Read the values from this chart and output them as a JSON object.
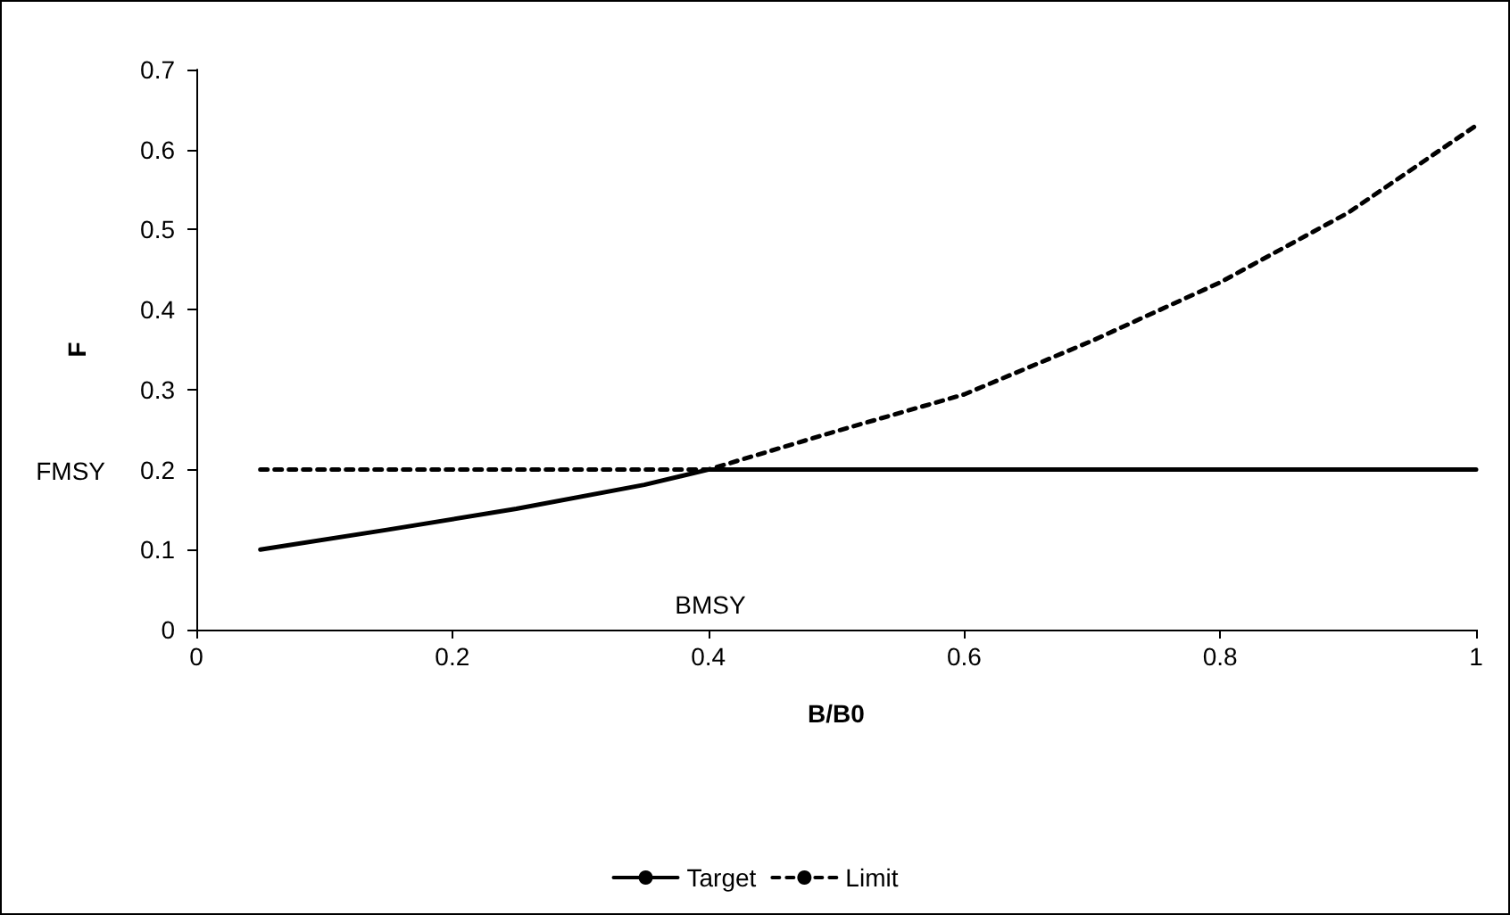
{
  "chart_data": {
    "type": "line",
    "xlabel": "B/B0",
    "ylabel": "F",
    "xlim": [
      0,
      1
    ],
    "xticks": [
      0,
      0.2,
      0.4,
      0.6,
      0.8,
      1
    ],
    "ylim": [
      0,
      0.7
    ],
    "yticks": [
      0,
      0.1,
      0.2,
      0.3,
      0.4,
      0.5,
      0.6,
      0.7
    ],
    "grid": false,
    "legend": "bottom",
    "marker": "none",
    "series": [
      {
        "name": "Target",
        "color": "#000000",
        "line_style": "solid",
        "x": [
          0.05,
          0.15,
          0.25,
          0.35,
          0.4,
          0.5,
          0.6,
          0.7,
          0.8,
          0.9,
          1
        ],
        "values": [
          0.1,
          0.125,
          0.151,
          0.181,
          0.2,
          0.2,
          0.2,
          0.2,
          0.2,
          0.2,
          0.2
        ]
      },
      {
        "name": "Limit",
        "color": "#000000",
        "line_style": "dashed",
        "x": [
          0.05,
          0.15,
          0.25,
          0.35,
          0.4,
          0.5,
          0.6,
          0.7,
          0.8,
          0.9,
          1
        ],
        "values": [
          0.2,
          0.2,
          0.2,
          0.2,
          0.2,
          0.248,
          0.294,
          0.361,
          0.434,
          0.521,
          0.63
        ]
      }
    ],
    "annotations": [
      "FMSY",
      "BMSY"
    ]
  }
}
